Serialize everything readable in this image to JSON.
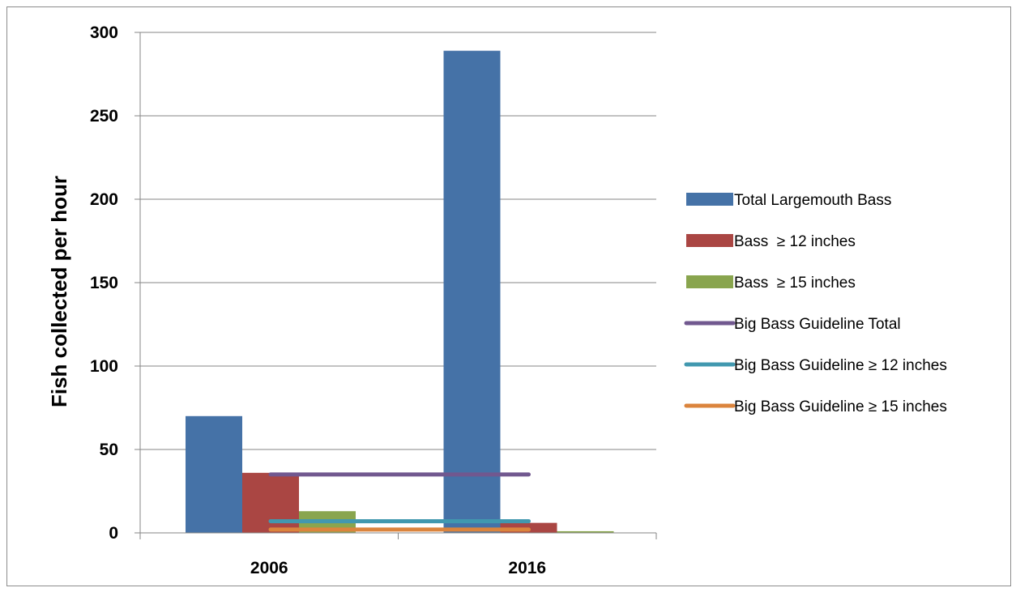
{
  "chart_data": {
    "type": "bar",
    "title": "",
    "xlabel": "",
    "ylabel": "Fish collected per hour",
    "categories": [
      "2006",
      "2016"
    ],
    "ylim": [
      0,
      300
    ],
    "yticks": [
      "0",
      "50",
      "100",
      "150",
      "200",
      "250",
      "300"
    ],
    "grid": true,
    "legend_position": "right",
    "series": [
      {
        "name": "Total Largemouth Bass",
        "kind": "bar",
        "color": "#4572A7",
        "values": [
          70,
          289
        ]
      },
      {
        "name": "Bass  ≥ 12 inches",
        "kind": "bar",
        "color": "#AA4643",
        "values": [
          36,
          6
        ]
      },
      {
        "name": "Bass  ≥ 15 inches",
        "kind": "bar",
        "color": "#89A54E",
        "values": [
          13,
          1
        ]
      },
      {
        "name": "Big Bass Guideline Total",
        "kind": "line",
        "color": "#71588F",
        "values": [
          35,
          35
        ]
      },
      {
        "name": "Big Bass Guideline ≥ 12 inches",
        "kind": "line",
        "color": "#4198AF",
        "values": [
          7,
          7
        ]
      },
      {
        "name": "Big Bass Guideline ≥ 15 inches",
        "kind": "line",
        "color": "#DB843D",
        "values": [
          2,
          2
        ]
      }
    ]
  }
}
